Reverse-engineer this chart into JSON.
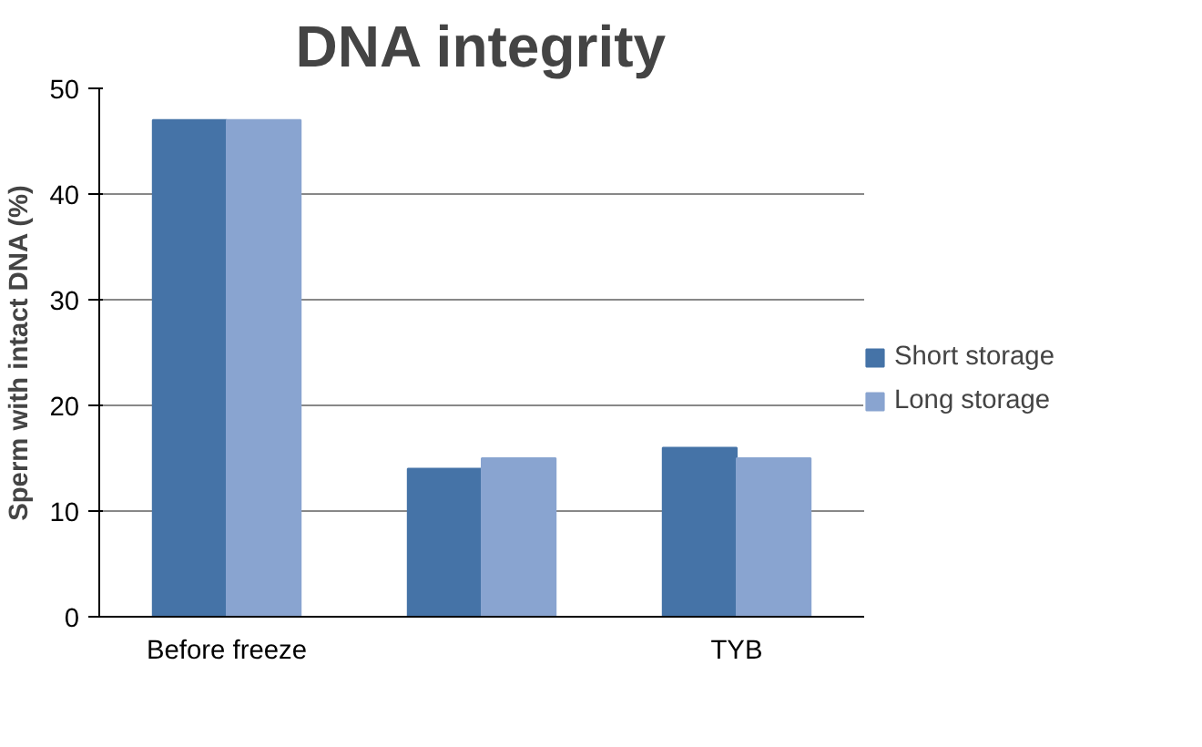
{
  "chart_data": {
    "type": "bar",
    "title": "DNA integrity",
    "ylabel": "Sperm with intact DNA (%)",
    "categories": [
      "Before freeze",
      null,
      "TYB"
    ],
    "series": [
      {
        "name": "Short storage",
        "color": "#4573a7",
        "values": [
          47,
          14,
          16
        ]
      },
      {
        "name": "Long storage",
        "color": "#89a4d0",
        "values": [
          47,
          15,
          15
        ]
      }
    ],
    "ylim": [
      0,
      50
    ],
    "yticks": [
      0,
      10,
      20,
      30,
      40,
      50
    ],
    "grid": "y",
    "legend": "right"
  }
}
